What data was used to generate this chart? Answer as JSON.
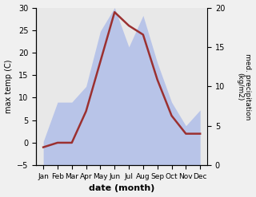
{
  "months": [
    "Jan",
    "Feb",
    "Mar",
    "Apr",
    "May",
    "Jun",
    "Jul",
    "Aug",
    "Sep",
    "Oct",
    "Nov",
    "Dec"
  ],
  "max_temp": [
    -1,
    0,
    0,
    7,
    18,
    29,
    26,
    24,
    14,
    6,
    2,
    2
  ],
  "precipitation": [
    3,
    8,
    8,
    10,
    17,
    20,
    15,
    19,
    13,
    8,
    5,
    7
  ],
  "temp_color": "#9b3030",
  "precip_fill_color": "#b8c4e8",
  "ylabel_left": "max temp (C)",
  "ylabel_right": "med. precipitation\n(kg/m2)",
  "xlabel": "date (month)",
  "ylim_left": [
    -5,
    30
  ],
  "ylim_right": [
    0,
    20
  ],
  "yticks_left": [
    -5,
    0,
    5,
    10,
    15,
    20,
    25,
    30
  ],
  "yticks_right": [
    0,
    5,
    10,
    15,
    20
  ],
  "bg_color": "#e8e8e8"
}
